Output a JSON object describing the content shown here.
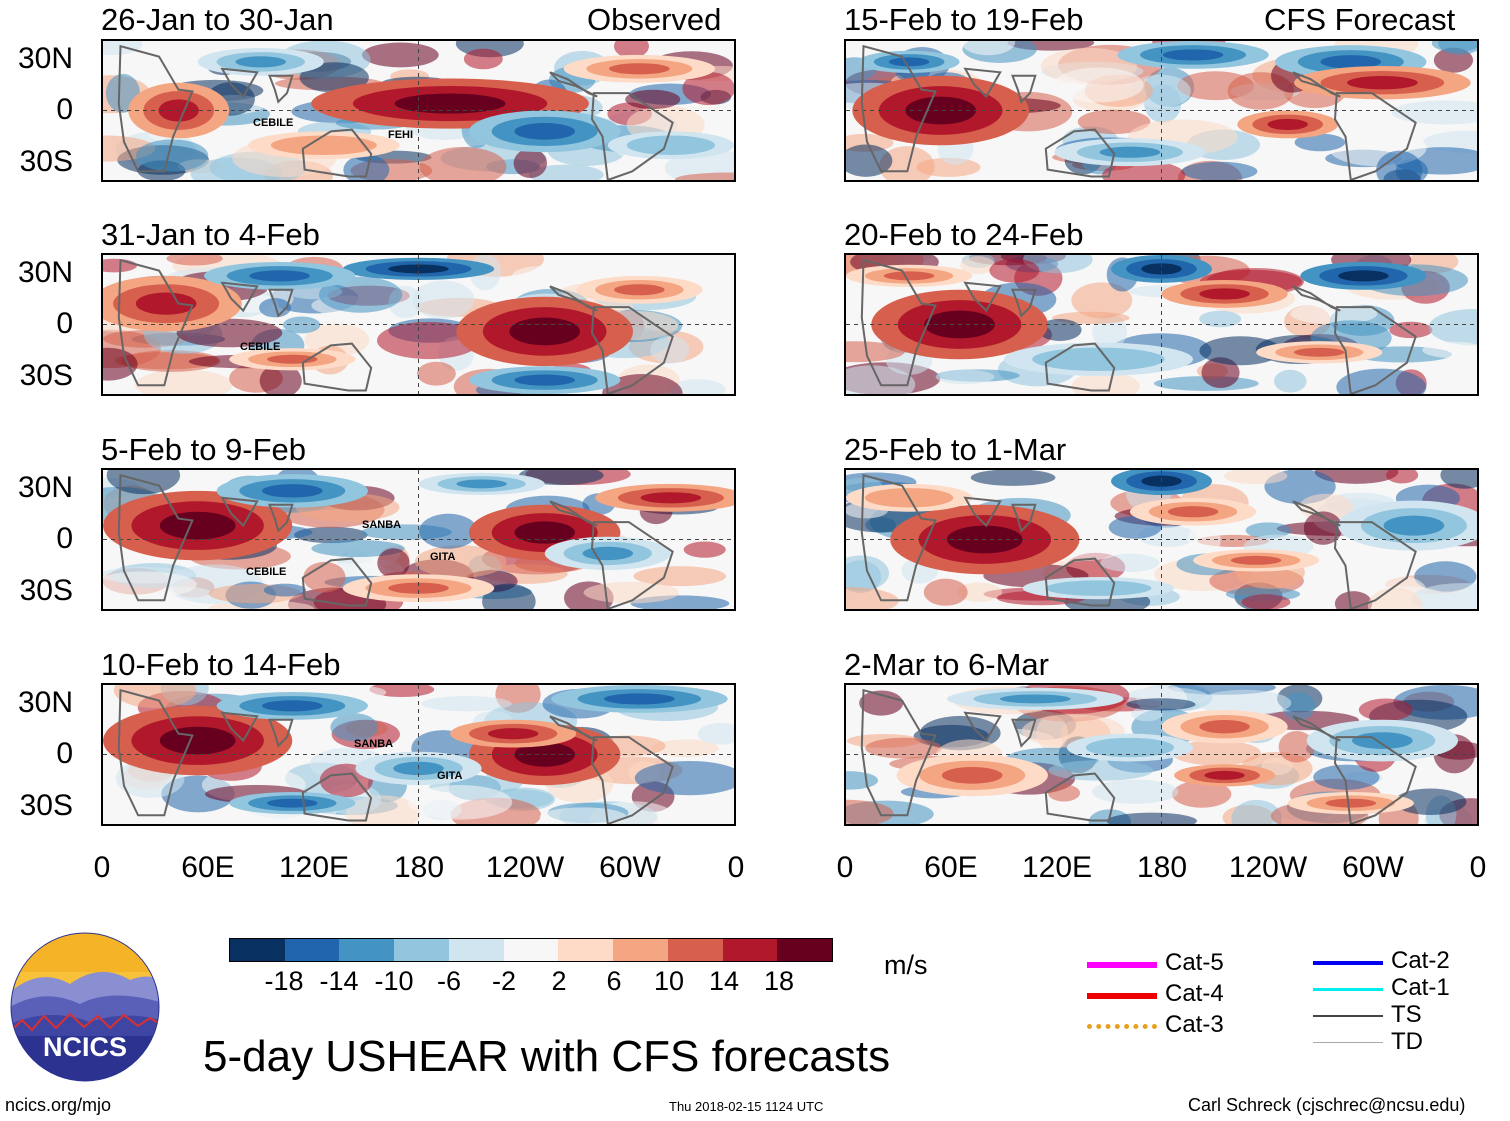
{
  "panels_left": [
    {
      "title": "26-Jan to 30-Jan",
      "tag": "Observed",
      "storms": [
        "CEBILE",
        "FEHI"
      ]
    },
    {
      "title": "31-Jan to 4-Feb",
      "tag": "",
      "storms": [
        "CEBILE"
      ]
    },
    {
      "title": "5-Feb to 9-Feb",
      "tag": "",
      "storms": [
        "SANBA",
        "GITA",
        "CEBILE"
      ]
    },
    {
      "title": "10-Feb to 14-Feb",
      "tag": "",
      "storms": [
        "SANBA",
        "GITA"
      ]
    }
  ],
  "panels_right": [
    {
      "title": "15-Feb to 19-Feb",
      "tag": "CFS Forecast"
    },
    {
      "title": "20-Feb to 24-Feb",
      "tag": ""
    },
    {
      "title": "25-Feb to 1-Mar",
      "tag": ""
    },
    {
      "title": "2-Mar to 6-Mar",
      "tag": ""
    }
  ],
  "y_labels": [
    "30N",
    "0",
    "30S"
  ],
  "x_labels": [
    "0",
    "60E",
    "120E",
    "180",
    "120W",
    "60W",
    "0"
  ],
  "colorbar": {
    "colors": [
      "#083061",
      "#2166ac",
      "#4393c3",
      "#92c5de",
      "#d1e5f0",
      "#f7f7f7",
      "#fddbc7",
      "#f4a582",
      "#d6604d",
      "#b2182b",
      "#67001f"
    ],
    "ticks": [
      "-18",
      "-14",
      "-10",
      "-6",
      "-2",
      "2",
      "6",
      "10",
      "14",
      "18"
    ],
    "units": "m/s"
  },
  "legend": {
    "left": [
      {
        "label": "Cat-5",
        "color": "#ff00ff"
      },
      {
        "label": "Cat-4",
        "color": "#ee0000"
      },
      {
        "label": "Cat-3",
        "color": "#e8a020"
      }
    ],
    "right": [
      {
        "label": "Cat-2",
        "color": "#0000ee"
      },
      {
        "label": "Cat-1",
        "color": "#00eeee"
      },
      {
        "label": "TS",
        "color": "#444444"
      },
      {
        "label": "TD",
        "color": "#aaaaaa"
      }
    ]
  },
  "logo_text": "NCICS",
  "main_title": "5-day USHEAR with CFS forecasts",
  "footer": {
    "left": "ncics.org/mjo",
    "center": "Thu 2018-02-15 1124 UTC",
    "right": "Carl Schreck (cjschrec@ncsu.edu)"
  }
}
